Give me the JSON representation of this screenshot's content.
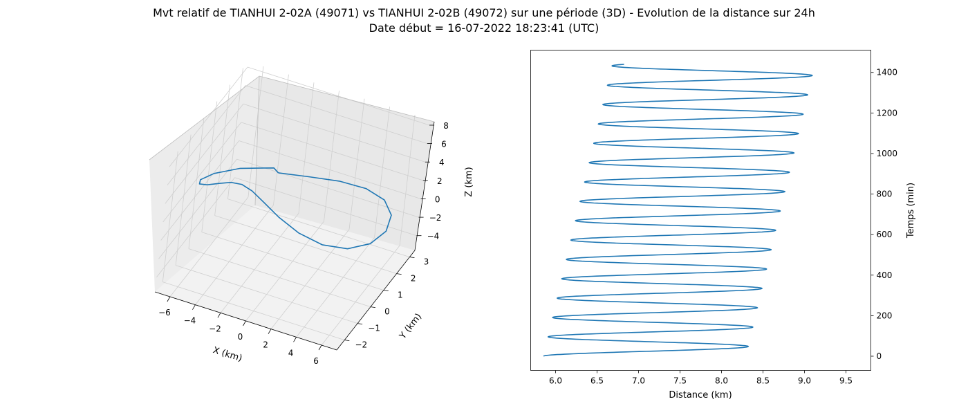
{
  "title_line1": "Mvt relatif de TIANHUI 2-02A (49071) vs TIANHUI 2-02B (49072) sur une période (3D) - Evolution de la distance sur 24h",
  "title_line2": "Date début = 16-07-2022 18:23:41 (UTC)",
  "colors": {
    "line": "#1f77b4",
    "pane": "#f2f2f2",
    "grid": "#cfcfcf"
  },
  "chart_data": [
    {
      "type": "line",
      "projection": "3d",
      "xlabel": "X (km)",
      "ylabel": "Y (km)",
      "zlabel": "Z (km)",
      "x_ticks": [
        "−6",
        "−4",
        "−2",
        "0",
        "2",
        "4",
        "6"
      ],
      "y_ticks": [
        "−2",
        "−1",
        "0",
        "1",
        "2",
        "3"
      ],
      "z_ticks": [
        "−4",
        "−2",
        "0",
        "2",
        "4",
        "6",
        "8"
      ],
      "series": [
        {
          "x": [
            0.0,
            2.0,
            3.827,
            5.292,
            6.213,
            6.449,
            5.966,
            4.838,
            3.232,
            1.386,
            -0.426,
            -2.022,
            -3.281,
            -4.173,
            -4.744,
            -5.088,
            -5.303,
            -5.433,
            -5.419,
            -5.067,
            -4.168,
            -2.619,
            -0.525,
            0.0
          ],
          "y": [
            -1.22,
            -0.808,
            -0.146,
            0.604,
            1.292,
            1.797,
            2.063,
            2.104,
            2.0,
            1.85,
            1.741,
            1.692,
            1.657,
            1.533,
            1.206,
            0.62,
            -0.197,
            -1.086,
            -1.818,
            -2.185,
            -2.085,
            -1.611,
            -1.053,
            -1.22
          ],
          "z": [
            8.0,
            7.713,
            6.836,
            5.326,
            3.238,
            0.788,
            -1.64,
            -3.571,
            -4.644,
            -4.741,
            -4.059,
            -2.98,
            -1.837,
            -0.761,
            0.289,
            1.415,
            2.68,
            4.075,
            5.502,
            6.773,
            7.662,
            8.044,
            8.002,
            8.0
          ]
        }
      ]
    },
    {
      "type": "line",
      "xlabel": "Distance (km)",
      "ylabel": "Temps (min)",
      "x_ticks": [
        "6.0",
        "6.5",
        "7.0",
        "7.5",
        "8.0",
        "8.5",
        "9.0",
        "9.5"
      ],
      "y_ticks": [
        "0",
        "200",
        "400",
        "600",
        "800",
        "1000",
        "1200",
        "1400"
      ],
      "xlim": [
        5.7,
        9.8
      ],
      "ylim": [
        -70,
        1510
      ],
      "series": [
        {
          "model": "distance = 7.075 + 1.22*sin(2*pi*(t-24)/95.5) + 0.83*t/1440, t = 0..1440 min",
          "t_start": 0,
          "t_end": 1440
        }
      ]
    }
  ]
}
